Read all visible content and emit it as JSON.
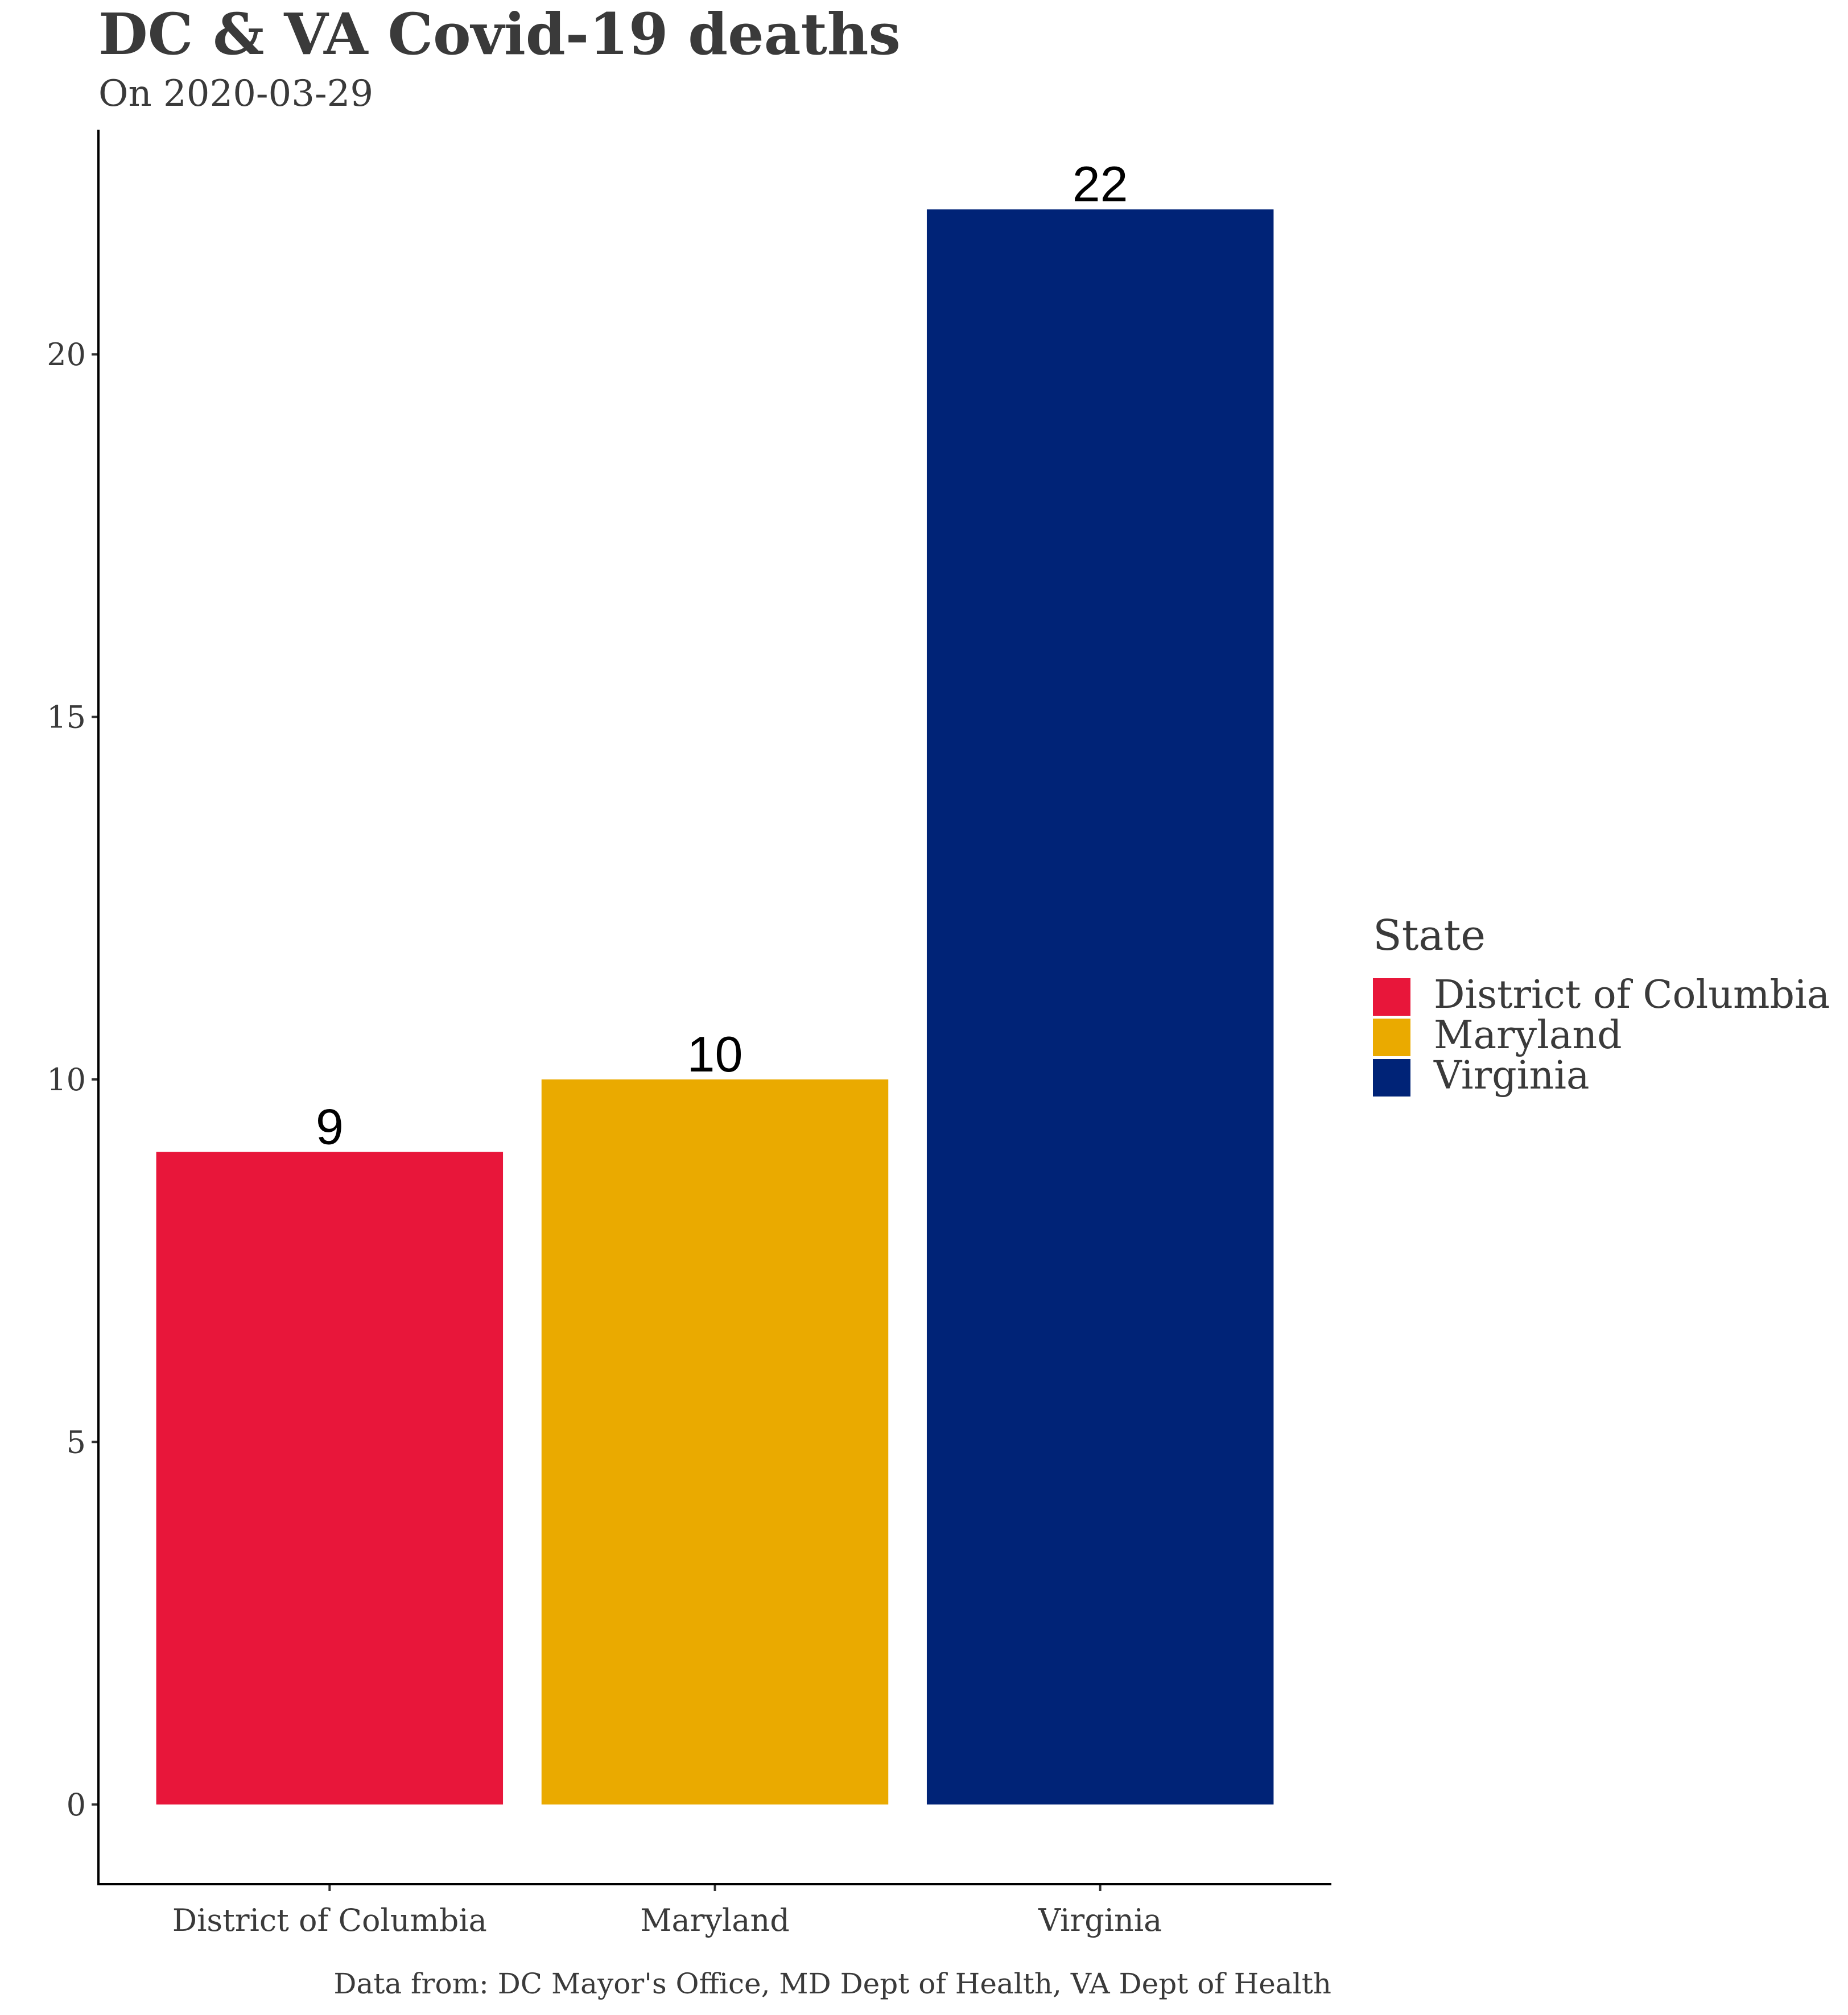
{
  "chart_data": {
    "type": "bar",
    "title": "DC & VA Covid-19 deaths",
    "subtitle": "On 2020-03-29",
    "caption": "Data from: DC Mayor's Office, MD Dept of Health, VA Dept of Health",
    "xlabel": "",
    "ylabel": "",
    "categories": [
      "District of Columbia",
      "Maryland",
      "Virginia"
    ],
    "values": [
      9,
      10,
      22
    ],
    "colors": [
      "#E8163A",
      "#EAAA00",
      "#002377"
    ],
    "ylim": [
      -1.1,
      23.1
    ],
    "yticks": [
      0,
      5,
      10,
      15,
      20
    ],
    "grid": false,
    "legend": {
      "title": "State",
      "placement": "right",
      "entries": [
        "District of Columbia",
        "Maryland",
        "Virginia"
      ]
    }
  }
}
